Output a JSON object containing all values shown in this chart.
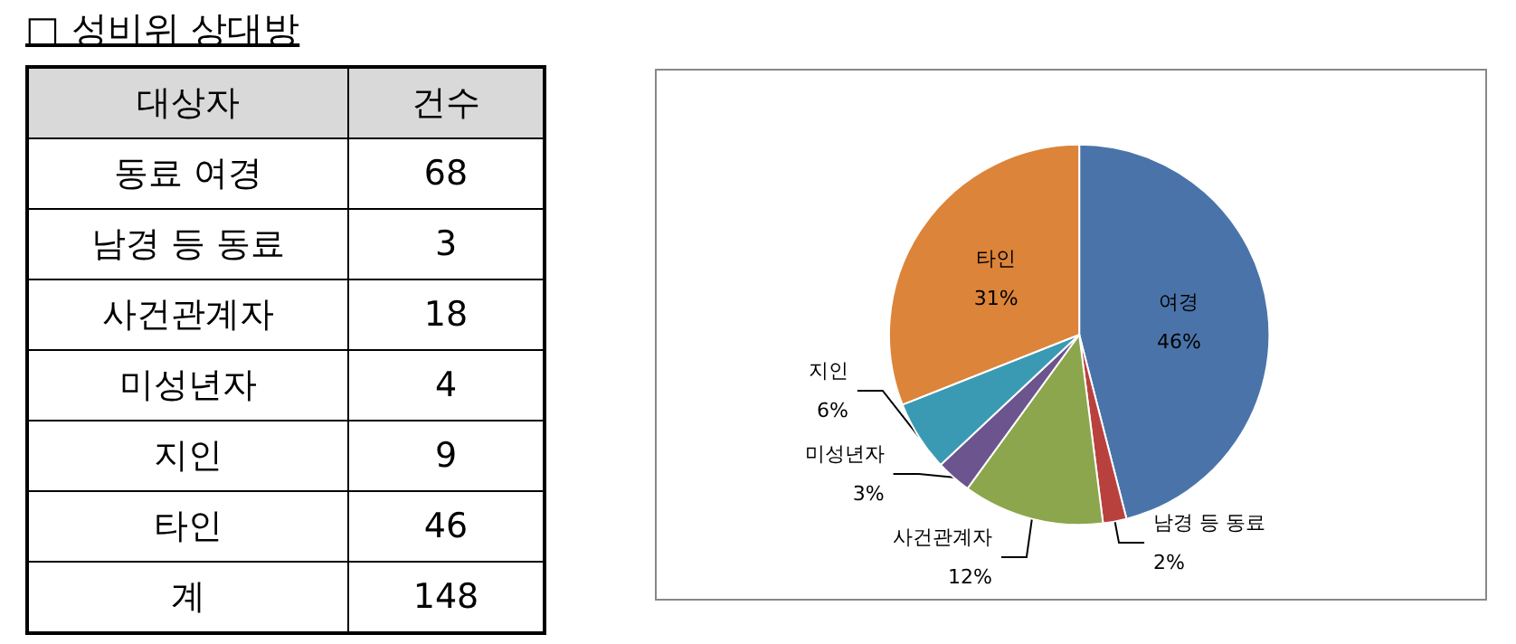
{
  "chart_data": [
    {
      "type": "other",
      "title": "□ 성비위 상대방",
      "xlabel": "대상자",
      "ylabel": "건수",
      "categories": [
        "동료 여경",
        "남경 등 동료",
        "사건관계자",
        "미성년자",
        "지인",
        "타인"
      ],
      "values": [
        68,
        3,
        18,
        4,
        9,
        46
      ],
      "data_labels": true,
      "annotations": [
        "계",
        "148"
      ]
    },
    {
      "type": "pie",
      "categories": [
        "여경",
        "남경 등 동료",
        "사건관계자",
        "미성년자",
        "지인",
        "타인"
      ],
      "values": [
        46,
        2,
        12,
        3,
        6,
        31
      ],
      "value_labels": [
        "46%",
        "2%",
        "12%",
        "3%",
        "6%",
        "31%"
      ],
      "colors": [
        "#4a74a9",
        "#b8413e",
        "#8ba64c",
        "#6c548f",
        "#3b9ab3",
        "#dc843a"
      ],
      "legend": false
    }
  ]
}
